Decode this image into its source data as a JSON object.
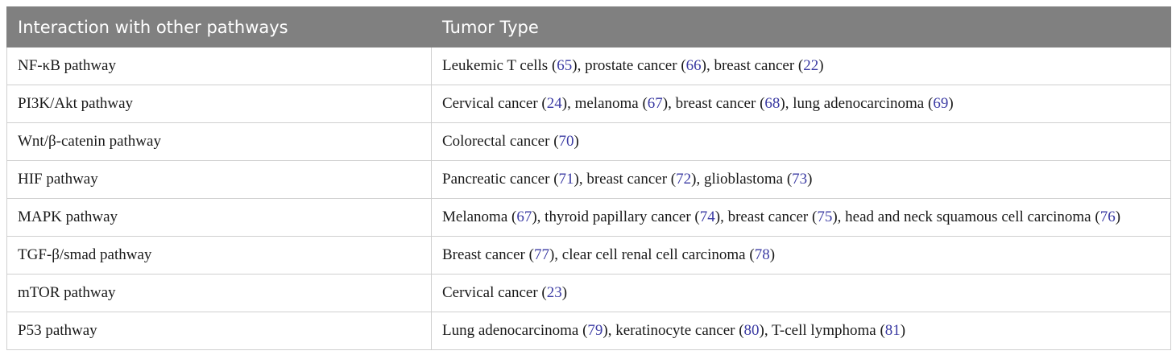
{
  "table": {
    "headers": [
      "Interaction with other pathways",
      "Tumor Type"
    ],
    "rows": [
      {
        "pathway": "NF-κB pathway",
        "tumors": [
          {
            "name": "Leukemic T cells",
            "ref": "65"
          },
          {
            "name": "prostate cancer",
            "ref": "66"
          },
          {
            "name": "breast cancer",
            "ref": "22"
          }
        ]
      },
      {
        "pathway": "PI3K/Akt pathway",
        "tumors": [
          {
            "name": "Cervical cancer",
            "ref": "24"
          },
          {
            "name": "melanoma",
            "ref": "67"
          },
          {
            "name": "breast cancer",
            "ref": "68"
          },
          {
            "name": "lung adenocarcinoma",
            "ref": "69"
          }
        ]
      },
      {
        "pathway": "Wnt/β-catenin pathway",
        "tumors": [
          {
            "name": "Colorectal cancer",
            "ref": "70"
          }
        ]
      },
      {
        "pathway": "HIF pathway",
        "tumors": [
          {
            "name": "Pancreatic cancer",
            "ref": "71"
          },
          {
            "name": "breast cancer",
            "ref": "72"
          },
          {
            "name": "glioblastoma",
            "ref": "73"
          }
        ]
      },
      {
        "pathway": "MAPK pathway",
        "tumors": [
          {
            "name": "Melanoma",
            "ref": "67"
          },
          {
            "name": "thyroid papillary cancer",
            "ref": "74"
          },
          {
            "name": "breast cancer",
            "ref": "75"
          },
          {
            "name": "head and neck squamous cell carcinoma",
            "ref": "76"
          }
        ]
      },
      {
        "pathway": "TGF-β/smad pathway",
        "tumors": [
          {
            "name": "Breast cancer",
            "ref": "77"
          },
          {
            "name": "clear cell renal cell carcinoma",
            "ref": "78"
          }
        ]
      },
      {
        "pathway": "mTOR pathway",
        "tumors": [
          {
            "name": "Cervical cancer",
            "ref": "23"
          }
        ]
      },
      {
        "pathway": "P53 pathway",
        "tumors": [
          {
            "name": "Lung adenocarcinoma",
            "ref": "79"
          },
          {
            "name": "keratinocyte cancer",
            "ref": "80"
          },
          {
            "name": "T-cell lymphoma",
            "ref": "81"
          }
        ]
      }
    ]
  }
}
